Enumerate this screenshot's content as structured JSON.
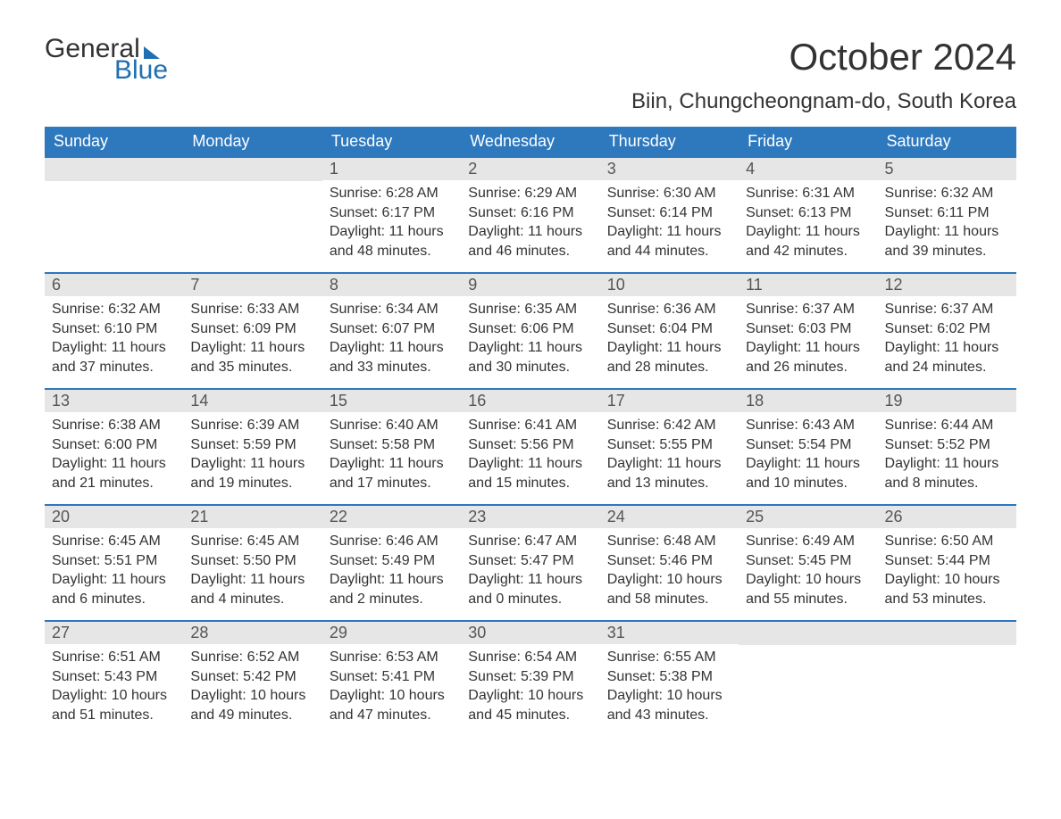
{
  "logo": {
    "word1": "General",
    "word2": "Blue"
  },
  "title": "October 2024",
  "location": "Biin, Chungcheongnam-do, South Korea",
  "weekdays": [
    "Sunday",
    "Monday",
    "Tuesday",
    "Wednesday",
    "Thursday",
    "Friday",
    "Saturday"
  ],
  "colors": {
    "header_bg": "#2e78bd",
    "header_text": "#ffffff",
    "daynum_bg": "#e6e6e6",
    "border": "#2e78bd",
    "logo_accent": "#1f6fb2",
    "body_text": "#333333"
  },
  "weeks": [
    [
      {
        "day": "",
        "lines": [
          "",
          "",
          "",
          ""
        ]
      },
      {
        "day": "",
        "lines": [
          "",
          "",
          "",
          ""
        ]
      },
      {
        "day": "1",
        "lines": [
          "Sunrise: 6:28 AM",
          "Sunset: 6:17 PM",
          "Daylight: 11 hours",
          "and 48 minutes."
        ]
      },
      {
        "day": "2",
        "lines": [
          "Sunrise: 6:29 AM",
          "Sunset: 6:16 PM",
          "Daylight: 11 hours",
          "and 46 minutes."
        ]
      },
      {
        "day": "3",
        "lines": [
          "Sunrise: 6:30 AM",
          "Sunset: 6:14 PM",
          "Daylight: 11 hours",
          "and 44 minutes."
        ]
      },
      {
        "day": "4",
        "lines": [
          "Sunrise: 6:31 AM",
          "Sunset: 6:13 PM",
          "Daylight: 11 hours",
          "and 42 minutes."
        ]
      },
      {
        "day": "5",
        "lines": [
          "Sunrise: 6:32 AM",
          "Sunset: 6:11 PM",
          "Daylight: 11 hours",
          "and 39 minutes."
        ]
      }
    ],
    [
      {
        "day": "6",
        "lines": [
          "Sunrise: 6:32 AM",
          "Sunset: 6:10 PM",
          "Daylight: 11 hours",
          "and 37 minutes."
        ]
      },
      {
        "day": "7",
        "lines": [
          "Sunrise: 6:33 AM",
          "Sunset: 6:09 PM",
          "Daylight: 11 hours",
          "and 35 minutes."
        ]
      },
      {
        "day": "8",
        "lines": [
          "Sunrise: 6:34 AM",
          "Sunset: 6:07 PM",
          "Daylight: 11 hours",
          "and 33 minutes."
        ]
      },
      {
        "day": "9",
        "lines": [
          "Sunrise: 6:35 AM",
          "Sunset: 6:06 PM",
          "Daylight: 11 hours",
          "and 30 minutes."
        ]
      },
      {
        "day": "10",
        "lines": [
          "Sunrise: 6:36 AM",
          "Sunset: 6:04 PM",
          "Daylight: 11 hours",
          "and 28 minutes."
        ]
      },
      {
        "day": "11",
        "lines": [
          "Sunrise: 6:37 AM",
          "Sunset: 6:03 PM",
          "Daylight: 11 hours",
          "and 26 minutes."
        ]
      },
      {
        "day": "12",
        "lines": [
          "Sunrise: 6:37 AM",
          "Sunset: 6:02 PM",
          "Daylight: 11 hours",
          "and 24 minutes."
        ]
      }
    ],
    [
      {
        "day": "13",
        "lines": [
          "Sunrise: 6:38 AM",
          "Sunset: 6:00 PM",
          "Daylight: 11 hours",
          "and 21 minutes."
        ]
      },
      {
        "day": "14",
        "lines": [
          "Sunrise: 6:39 AM",
          "Sunset: 5:59 PM",
          "Daylight: 11 hours",
          "and 19 minutes."
        ]
      },
      {
        "day": "15",
        "lines": [
          "Sunrise: 6:40 AM",
          "Sunset: 5:58 PM",
          "Daylight: 11 hours",
          "and 17 minutes."
        ]
      },
      {
        "day": "16",
        "lines": [
          "Sunrise: 6:41 AM",
          "Sunset: 5:56 PM",
          "Daylight: 11 hours",
          "and 15 minutes."
        ]
      },
      {
        "day": "17",
        "lines": [
          "Sunrise: 6:42 AM",
          "Sunset: 5:55 PM",
          "Daylight: 11 hours",
          "and 13 minutes."
        ]
      },
      {
        "day": "18",
        "lines": [
          "Sunrise: 6:43 AM",
          "Sunset: 5:54 PM",
          "Daylight: 11 hours",
          "and 10 minutes."
        ]
      },
      {
        "day": "19",
        "lines": [
          "Sunrise: 6:44 AM",
          "Sunset: 5:52 PM",
          "Daylight: 11 hours",
          "and 8 minutes."
        ]
      }
    ],
    [
      {
        "day": "20",
        "lines": [
          "Sunrise: 6:45 AM",
          "Sunset: 5:51 PM",
          "Daylight: 11 hours",
          "and 6 minutes."
        ]
      },
      {
        "day": "21",
        "lines": [
          "Sunrise: 6:45 AM",
          "Sunset: 5:50 PM",
          "Daylight: 11 hours",
          "and 4 minutes."
        ]
      },
      {
        "day": "22",
        "lines": [
          "Sunrise: 6:46 AM",
          "Sunset: 5:49 PM",
          "Daylight: 11 hours",
          "and 2 minutes."
        ]
      },
      {
        "day": "23",
        "lines": [
          "Sunrise: 6:47 AM",
          "Sunset: 5:47 PM",
          "Daylight: 11 hours",
          "and 0 minutes."
        ]
      },
      {
        "day": "24",
        "lines": [
          "Sunrise: 6:48 AM",
          "Sunset: 5:46 PM",
          "Daylight: 10 hours",
          "and 58 minutes."
        ]
      },
      {
        "day": "25",
        "lines": [
          "Sunrise: 6:49 AM",
          "Sunset: 5:45 PM",
          "Daylight: 10 hours",
          "and 55 minutes."
        ]
      },
      {
        "day": "26",
        "lines": [
          "Sunrise: 6:50 AM",
          "Sunset: 5:44 PM",
          "Daylight: 10 hours",
          "and 53 minutes."
        ]
      }
    ],
    [
      {
        "day": "27",
        "lines": [
          "Sunrise: 6:51 AM",
          "Sunset: 5:43 PM",
          "Daylight: 10 hours",
          "and 51 minutes."
        ]
      },
      {
        "day": "28",
        "lines": [
          "Sunrise: 6:52 AM",
          "Sunset: 5:42 PM",
          "Daylight: 10 hours",
          "and 49 minutes."
        ]
      },
      {
        "day": "29",
        "lines": [
          "Sunrise: 6:53 AM",
          "Sunset: 5:41 PM",
          "Daylight: 10 hours",
          "and 47 minutes."
        ]
      },
      {
        "day": "30",
        "lines": [
          "Sunrise: 6:54 AM",
          "Sunset: 5:39 PM",
          "Daylight: 10 hours",
          "and 45 minutes."
        ]
      },
      {
        "day": "31",
        "lines": [
          "Sunrise: 6:55 AM",
          "Sunset: 5:38 PM",
          "Daylight: 10 hours",
          "and 43 minutes."
        ]
      },
      {
        "day": "",
        "lines": [
          "",
          "",
          "",
          ""
        ]
      },
      {
        "day": "",
        "lines": [
          "",
          "",
          "",
          ""
        ]
      }
    ]
  ]
}
